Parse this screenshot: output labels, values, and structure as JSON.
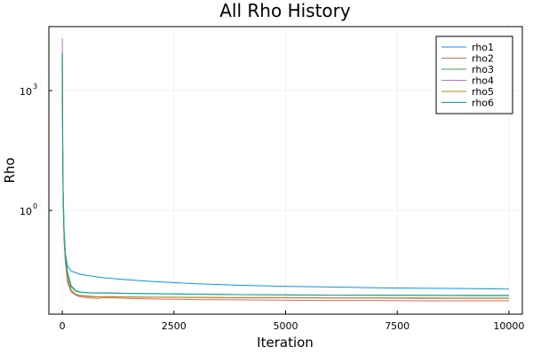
{
  "chart_data": {
    "type": "line",
    "title": "All Rho History",
    "xlabel": "Iteration",
    "ylabel": "Rho",
    "xlim": [
      -300,
      10300
    ],
    "ylim": [
      0.0025,
      40000
    ],
    "yscale": "log10",
    "xticks": [
      0,
      2500,
      5000,
      7500,
      10000
    ],
    "xtick_labels": [
      "0",
      "2500",
      "5000",
      "7500",
      "10000"
    ],
    "yticks": [
      1,
      1000
    ],
    "ytick_labels": [
      {
        "base": "10",
        "exp": "0"
      },
      {
        "base": "10",
        "exp": "3"
      }
    ],
    "grid": true,
    "legend_position": "top-right",
    "series": [
      {
        "name": "rho1",
        "color": "#009AFA",
        "points": [
          [
            0,
            6000
          ],
          [
            5,
            400
          ],
          [
            10,
            30
          ],
          [
            20,
            2.5
          ],
          [
            40,
            0.3
          ],
          [
            70,
            0.08
          ],
          [
            120,
            0.04
          ],
          [
            200,
            0.03
          ],
          [
            400,
            0.025
          ],
          [
            700,
            0.022
          ],
          [
            1000,
            0.02
          ],
          [
            1500,
            0.018
          ],
          [
            2000,
            0.0165
          ],
          [
            2500,
            0.0155
          ],
          [
            3000,
            0.0145
          ],
          [
            4000,
            0.0132
          ],
          [
            5000,
            0.0125
          ],
          [
            6000,
            0.012
          ],
          [
            7000,
            0.0115
          ],
          [
            8000,
            0.0112
          ],
          [
            9000,
            0.011
          ],
          [
            10000,
            0.0106
          ]
        ]
      },
      {
        "name": "rho2",
        "color": "#E36F47",
        "points": [
          [
            0,
            5000
          ],
          [
            5,
            300
          ],
          [
            10,
            20
          ],
          [
            20,
            1.8
          ],
          [
            40,
            0.18
          ],
          [
            70,
            0.05
          ],
          [
            120,
            0.015
          ],
          [
            200,
            0.009
          ],
          [
            300,
            0.0075
          ],
          [
            400,
            0.0068
          ],
          [
            600,
            0.0064
          ],
          [
            800,
            0.0062
          ],
          [
            1000,
            0.0065
          ],
          [
            1500,
            0.0062
          ],
          [
            2000,
            0.006
          ],
          [
            3000,
            0.0058
          ],
          [
            4000,
            0.0057
          ],
          [
            5000,
            0.0056
          ],
          [
            6000,
            0.0055
          ],
          [
            7000,
            0.0055
          ],
          [
            8000,
            0.0054
          ],
          [
            9000,
            0.0054
          ],
          [
            10000,
            0.0054
          ]
        ]
      },
      {
        "name": "rho3",
        "color": "#3EA44E",
        "points": [
          [
            0,
            8000
          ],
          [
            5,
            450
          ],
          [
            10,
            35
          ],
          [
            20,
            2.8
          ],
          [
            40,
            0.3
          ],
          [
            70,
            0.07
          ],
          [
            120,
            0.025
          ],
          [
            200,
            0.012
          ],
          [
            300,
            0.0095
          ],
          [
            400,
            0.0088
          ],
          [
            600,
            0.0085
          ],
          [
            800,
            0.0084
          ],
          [
            1000,
            0.0085
          ],
          [
            1500,
            0.0083
          ],
          [
            2000,
            0.0082
          ],
          [
            3000,
            0.0079
          ],
          [
            4000,
            0.0077
          ],
          [
            5000,
            0.0076
          ],
          [
            6000,
            0.0075
          ],
          [
            7000,
            0.0074
          ],
          [
            8000,
            0.0074
          ],
          [
            9000,
            0.0073
          ],
          [
            10000,
            0.0073
          ]
        ]
      },
      {
        "name": "rho4",
        "color": "#C270D2",
        "points": [
          [
            0,
            20000
          ],
          [
            5,
            800
          ],
          [
            10,
            40
          ],
          [
            20,
            2.2
          ],
          [
            40,
            0.22
          ],
          [
            70,
            0.055
          ],
          [
            120,
            0.02
          ],
          [
            200,
            0.01
          ],
          [
            300,
            0.008
          ],
          [
            400,
            0.0074
          ],
          [
            600,
            0.0071
          ],
          [
            800,
            0.0069
          ],
          [
            1000,
            0.0068
          ],
          [
            1500,
            0.0067
          ],
          [
            2000,
            0.0066
          ],
          [
            3000,
            0.0065
          ],
          [
            4000,
            0.0064
          ],
          [
            5000,
            0.0064
          ],
          [
            6000,
            0.0063
          ],
          [
            7000,
            0.0063
          ],
          [
            8000,
            0.0062
          ],
          [
            9000,
            0.0062
          ],
          [
            10000,
            0.0062
          ]
        ]
      },
      {
        "name": "rho5",
        "color": "#AC8E18",
        "points": [
          [
            0,
            7000
          ],
          [
            5,
            350
          ],
          [
            10,
            25
          ],
          [
            20,
            2
          ],
          [
            40,
            0.2
          ],
          [
            70,
            0.05
          ],
          [
            120,
            0.018
          ],
          [
            200,
            0.0095
          ],
          [
            300,
            0.0078
          ],
          [
            400,
            0.0072
          ],
          [
            600,
            0.0069
          ],
          [
            800,
            0.0068
          ],
          [
            1000,
            0.0069
          ],
          [
            1500,
            0.0068
          ],
          [
            2000,
            0.0067
          ],
          [
            3000,
            0.0066
          ],
          [
            4000,
            0.0065
          ],
          [
            5000,
            0.0065
          ],
          [
            6000,
            0.0064
          ],
          [
            7000,
            0.0064
          ],
          [
            8000,
            0.0064
          ],
          [
            9000,
            0.0063
          ],
          [
            10000,
            0.0063
          ]
        ]
      },
      {
        "name": "rho6",
        "color": "#00A9AD",
        "points": [
          [
            0,
            9000
          ],
          [
            5,
            500
          ],
          [
            10,
            40
          ],
          [
            20,
            3
          ],
          [
            40,
            0.33
          ],
          [
            70,
            0.08
          ],
          [
            120,
            0.028
          ],
          [
            200,
            0.013
          ],
          [
            300,
            0.0098
          ],
          [
            400,
            0.009
          ],
          [
            600,
            0.0086
          ],
          [
            800,
            0.0085
          ],
          [
            1000,
            0.0086
          ],
          [
            1500,
            0.0083
          ],
          [
            2000,
            0.0081
          ],
          [
            3000,
            0.0079
          ],
          [
            4000,
            0.0077
          ],
          [
            5000,
            0.0076
          ],
          [
            6000,
            0.0075
          ],
          [
            7000,
            0.0075
          ],
          [
            8000,
            0.0074
          ],
          [
            9000,
            0.0074
          ],
          [
            10000,
            0.0074
          ]
        ]
      }
    ]
  }
}
